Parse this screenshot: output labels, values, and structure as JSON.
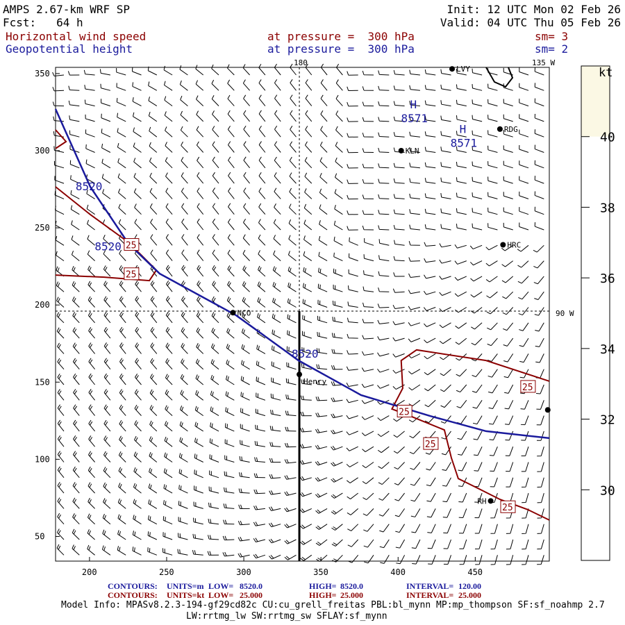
{
  "header": {
    "title": "AMPS 2.67-km WRF SP",
    "fcst": "Fcst:   64 h",
    "init": "Init: 12 UTC Mon 02 Feb 26",
    "valid": "Valid: 04 UTC Thu 05 Feb 26",
    "field1": "Horizontal wind speed",
    "field1_level": "at pressure =  300 hPa",
    "field1_sm": "sm= 3",
    "field2": "Geopotential height",
    "field2_level": "at pressure =  300 hPa",
    "field2_sm": "sm= 2"
  },
  "chart_data": {
    "type": "contour-map",
    "xlim": [
      178,
      498
    ],
    "ylim": [
      34,
      354
    ],
    "xticks": [
      200,
      250,
      300,
      350,
      400,
      450
    ],
    "yticks": [
      50,
      100,
      150,
      200,
      250,
      300,
      350
    ],
    "lon_labels": [
      "180",
      "135 W",
      "90 W"
    ],
    "colorbar": {
      "unit": "kt",
      "ticks": [
        30,
        32,
        34,
        36,
        38,
        40
      ],
      "range": [
        28,
        42
      ],
      "top_color": "#fbf8e4"
    },
    "height_contours": [
      {
        "value": "8520",
        "color": "#1a1a9c",
        "points": [
          [
            178,
            327
          ],
          [
            200.5,
            276.6
          ],
          [
            225.3,
            239.7
          ],
          [
            245.5,
            220.3
          ],
          [
            295,
            193.3
          ],
          [
            335.5,
            164
          ],
          [
            376,
            141.6
          ],
          [
            421,
            128
          ],
          [
            457,
            118.2
          ],
          [
            498,
            113.7
          ]
        ]
      }
    ],
    "height_labels": [
      {
        "text": "8520",
        "x": 200,
        "y": 277
      },
      {
        "text": "8520",
        "x": 227,
        "y": 238
      },
      {
        "text": "8520",
        "x": 340,
        "y": 164
      }
    ],
    "highs": [
      {
        "text": "H",
        "value": "8571",
        "x": 410,
        "y": 322
      },
      {
        "text": "H",
        "value": "8571",
        "x": 442,
        "y": 306
      }
    ],
    "wind_contours": [
      {
        "value": "25",
        "color": "#8b0000",
        "points": [
          [
            178,
            276.6
          ],
          [
            200.5,
            258.6
          ],
          [
            225.3,
            240.6
          ],
          [
            243.3,
            222.6
          ],
          [
            238.8,
            215.8
          ],
          [
            209.5,
            218
          ],
          [
            178,
            219.4
          ]
        ]
      },
      {
        "value": "25",
        "color": "#8b0000",
        "points": [
          [
            178,
            313.5
          ],
          [
            184.8,
            305.9
          ],
          [
            178,
            301.4
          ]
        ]
      },
      {
        "value": "25",
        "color": "#8b0000",
        "points": [
          [
            498,
            150.6
          ],
          [
            457,
            164
          ],
          [
            412,
            170.9
          ],
          [
            402,
            164
          ],
          [
            403,
            146
          ],
          [
            396,
            132.6
          ],
          [
            408,
            128
          ],
          [
            430,
            119
          ],
          [
            434.5,
            101
          ],
          [
            439,
            87.5
          ],
          [
            452.5,
            80.8
          ],
          [
            466,
            74
          ],
          [
            484,
            67.4
          ],
          [
            498,
            60.6
          ]
        ]
      }
    ],
    "wind_labels": [
      {
        "text": "25",
        "x": 227,
        "y": 239
      },
      {
        "text": "25",
        "x": 227,
        "y": 220
      },
      {
        "text": "25",
        "x": 404,
        "y": 131
      },
      {
        "text": "25",
        "x": 421,
        "y": 110
      },
      {
        "text": "25",
        "x": 484,
        "y": 147
      },
      {
        "text": "25",
        "x": 471,
        "y": 69
      }
    ],
    "stations": [
      {
        "name": "LVY",
        "x": 435,
        "y": 353
      },
      {
        "name": "RDG",
        "x": 466,
        "y": 314
      },
      {
        "name": "KLN",
        "x": 402,
        "y": 300
      },
      {
        "name": "HRC",
        "x": 468,
        "y": 239
      },
      {
        "name": "NCO",
        "x": 293,
        "y": 195
      },
      {
        "name": "Henry",
        "x": 336,
        "y": 155
      },
      {
        "name": "RH",
        "x": 460,
        "y": 73
      },
      {
        "name": "",
        "x": 497,
        "y": 132
      }
    ],
    "cross_section": {
      "x": 336,
      "y_from": 34,
      "y_to": 196
    }
  },
  "footer": {
    "c1": [
      "CONTOURS:",
      "UNITS=m",
      "LOW=",
      "8520.0",
      "HIGH=",
      "8520.0",
      "INTERVAL=",
      "120.00"
    ],
    "c2": [
      "CONTOURS:",
      "UNITS=kt",
      "LOW=",
      "25.000",
      "HIGH=",
      "25.000",
      "INTERVAL=",
      "25.000"
    ],
    "model1": "Model Info: MPASv8.2.3-194-gf29cd82c CU:cu_grell_freitas PBL:bl_mynn MP:mp_thompson SF:sf_noahmp 2.7",
    "model2": "LW:rrtmg_lw SW:rrtmg_sw SFLAY:sf_mynn"
  }
}
